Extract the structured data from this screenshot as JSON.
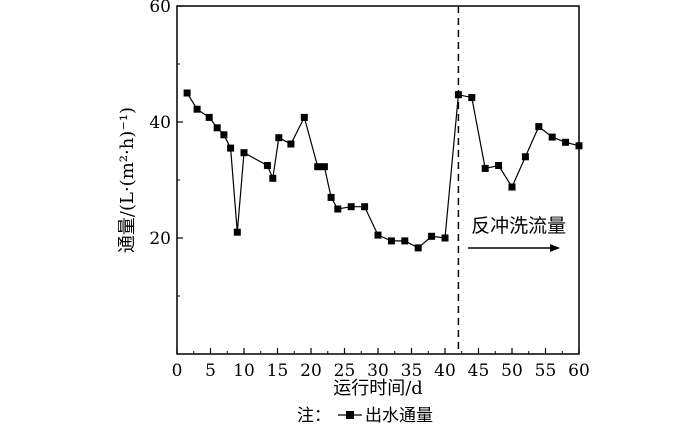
{
  "chart_data": {
    "type": "line",
    "xlabel": "运行时间/d",
    "ylabel": "通量/(L·(m²·h)⁻¹)",
    "xlim": [
      0,
      60
    ],
    "ylim": [
      0,
      60
    ],
    "xticks": [
      0,
      5,
      10,
      15,
      20,
      25,
      30,
      35,
      40,
      45,
      50,
      55,
      60
    ],
    "yticks": [
      20,
      40,
      60
    ],
    "grid": false,
    "series": [
      {
        "name": "出水通量",
        "marker": "square",
        "color": "#000000",
        "x": [
          1.5,
          3,
          4.8,
          6,
          7,
          8,
          9,
          10,
          13.5,
          14.3,
          15.2,
          17,
          19,
          21,
          22,
          23,
          24,
          26,
          28,
          30,
          32,
          34,
          36,
          38,
          40,
          42,
          44,
          46,
          48,
          50,
          52,
          54,
          56,
          58,
          60
        ],
        "y": [
          45,
          42.2,
          40.8,
          39,
          37.8,
          35.5,
          21,
          34.7,
          32.5,
          30.3,
          37.3,
          36.2,
          40.8,
          32.3,
          32.3,
          27,
          25,
          25.4,
          25.4,
          20.5,
          19.5,
          19.5,
          18.3,
          20.3,
          20,
          44.7,
          44.2,
          32,
          32.5,
          28.8,
          34,
          39.2,
          37.4,
          36.5,
          35.9
        ]
      }
    ],
    "reference_line": {
      "x": 42,
      "style": "dashed"
    },
    "annotation": {
      "text": "反冲洗流量",
      "arrow": "right",
      "x_from": 43,
      "x_to": 57,
      "y": 20
    },
    "legend": {
      "prefix": "注：",
      "label": "出水通量",
      "placement": "bottom-center"
    }
  }
}
